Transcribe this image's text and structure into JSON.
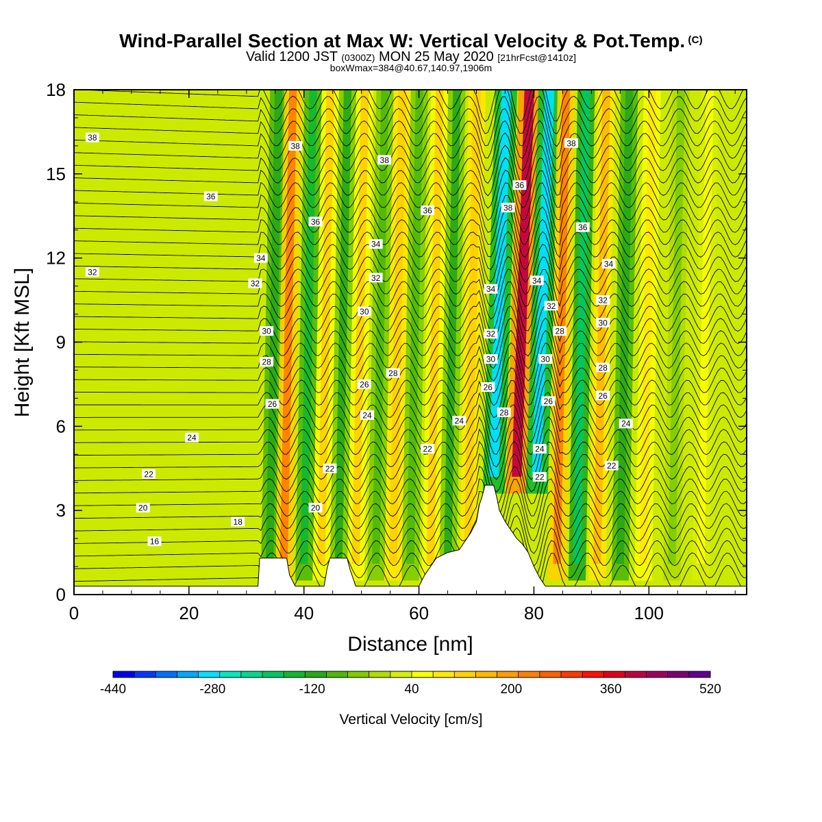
{
  "header": {
    "title": "Wind-Parallel Section at Max W: Vertical Velocity & Pot.Temp.",
    "title_mark": "(C)",
    "valid_prefix": "Valid 1200 JST",
    "valid_utc": "(0300Z)",
    "valid_date": "MON 25 May 2020",
    "forecast": "[21hrFcst@1410z]",
    "boxmax": "boxWmax=384@40.67,140.97,1906m"
  },
  "chart_data": {
    "type": "heatmap",
    "xlabel": "Distance [nm]",
    "ylabel": "Height [Kft MSL]",
    "xlim": [
      0,
      117
    ],
    "ylim": [
      0,
      18
    ],
    "xticks": [
      "0",
      "20",
      "40",
      "60",
      "80",
      "100"
    ],
    "yticks": [
      "0",
      "3",
      "6",
      "9",
      "12",
      "15",
      "18"
    ],
    "colorbar": {
      "title": "Vertical Velocity [cm/s]",
      "labels": [
        "-440",
        "-280",
        "-120",
        "40",
        "200",
        "360",
        "520"
      ],
      "range": [
        -440,
        520
      ],
      "colors": [
        "#0000f0",
        "#0038ff",
        "#0070ff",
        "#00a8ff",
        "#00e0ff",
        "#00e8c0",
        "#00d890",
        "#00c860",
        "#10b830",
        "#28a818",
        "#50b808",
        "#80cc00",
        "#b0dc00",
        "#d8ee00",
        "#f8ff00",
        "#ffe800",
        "#ffd000",
        "#ffb800",
        "#ff9c00",
        "#ff8000",
        "#ff6000",
        "#ff3800",
        "#ff1000",
        "#e00018",
        "#c00040",
        "#a00060",
        "#800070",
        "#600090"
      ]
    },
    "w_field": [
      {
        "x": 34,
        "w": -120
      },
      {
        "x": 36.5,
        "w": 240
      },
      {
        "x": 40,
        "w": -140
      },
      {
        "x": 43,
        "w": 120
      },
      {
        "x": 46,
        "w": -100
      },
      {
        "x": 49,
        "w": 120
      },
      {
        "x": 52.5,
        "w": -80
      },
      {
        "x": 55.5,
        "w": 140
      },
      {
        "x": 58.5,
        "w": -80
      },
      {
        "x": 62,
        "w": 120
      },
      {
        "x": 65,
        "w": -100
      },
      {
        "x": 68.5,
        "w": 140
      },
      {
        "x": 73,
        "w": -300
      },
      {
        "x": 77,
        "w": 384
      },
      {
        "x": 80.5,
        "w": -300
      },
      {
        "x": 84,
        "w": 240
      },
      {
        "x": 87.5,
        "w": -200
      },
      {
        "x": 91,
        "w": 160
      },
      {
        "x": 95,
        "w": -120
      },
      {
        "x": 99,
        "w": 80
      },
      {
        "x": 104,
        "w": -40
      },
      {
        "x": 109,
        "w": 40
      }
    ],
    "theta_levels": [
      16,
      18,
      20,
      22,
      24,
      26,
      28,
      30,
      32,
      34,
      36,
      38
    ],
    "contour_labels": [
      {
        "text": "38",
        "x": 3.2,
        "y": 16.3
      },
      {
        "text": "36",
        "x": 23.8,
        "y": 14.2
      },
      {
        "text": "32",
        "x": 3.2,
        "y": 11.5
      },
      {
        "text": "24",
        "x": 20.5,
        "y": 5.6
      },
      {
        "text": "22",
        "x": 13,
        "y": 4.3
      },
      {
        "text": "20",
        "x": 12,
        "y": 3.1
      },
      {
        "text": "18",
        "x": 28.5,
        "y": 2.6
      },
      {
        "text": "16",
        "x": 14,
        "y": 1.9
      },
      {
        "text": "38",
        "x": 38.5,
        "y": 16
      },
      {
        "text": "36",
        "x": 42,
        "y": 13.3
      },
      {
        "text": "34",
        "x": 32.5,
        "y": 12
      },
      {
        "text": "32",
        "x": 31.5,
        "y": 11.1
      },
      {
        "text": "30",
        "x": 33.5,
        "y": 9.4
      },
      {
        "text": "28",
        "x": 33.5,
        "y": 8.3
      },
      {
        "text": "26",
        "x": 34.5,
        "y": 6.8
      },
      {
        "text": "38",
        "x": 54,
        "y": 15.5
      },
      {
        "text": "34",
        "x": 52.5,
        "y": 12.5
      },
      {
        "text": "32",
        "x": 52.5,
        "y": 11.3
      },
      {
        "text": "30",
        "x": 50.5,
        "y": 10.1
      },
      {
        "text": "28",
        "x": 55.5,
        "y": 7.9
      },
      {
        "text": "26",
        "x": 50.5,
        "y": 7.5
      },
      {
        "text": "24",
        "x": 51,
        "y": 6.4
      },
      {
        "text": "22",
        "x": 44.5,
        "y": 4.5
      },
      {
        "text": "20",
        "x": 42,
        "y": 3.1
      },
      {
        "text": "36",
        "x": 61.5,
        "y": 13.7
      },
      {
        "text": "24",
        "x": 67,
        "y": 6.2
      },
      {
        "text": "22",
        "x": 61.5,
        "y": 5.2
      },
      {
        "text": "34",
        "x": 72.5,
        "y": 10.9
      },
      {
        "text": "32",
        "x": 72.5,
        "y": 9.3
      },
      {
        "text": "30",
        "x": 72.5,
        "y": 8.4
      },
      {
        "text": "26",
        "x": 72,
        "y": 7.4
      },
      {
        "text": "28",
        "x": 74.8,
        "y": 6.5
      },
      {
        "text": "38",
        "x": 75.5,
        "y": 13.8
      },
      {
        "text": "36",
        "x": 77.5,
        "y": 14.6
      },
      {
        "text": "38",
        "x": 86.5,
        "y": 16.1
      },
      {
        "text": "36",
        "x": 88.5,
        "y": 13.1
      },
      {
        "text": "34",
        "x": 80.5,
        "y": 11.2
      },
      {
        "text": "32",
        "x": 83,
        "y": 10.3
      },
      {
        "text": "28",
        "x": 84.5,
        "y": 9.4
      },
      {
        "text": "30",
        "x": 82,
        "y": 8.4
      },
      {
        "text": "26",
        "x": 82.5,
        "y": 6.9
      },
      {
        "text": "24",
        "x": 81,
        "y": 5.2
      },
      {
        "text": "22",
        "x": 81,
        "y": 4.2
      },
      {
        "text": "34",
        "x": 93,
        "y": 11.8
      },
      {
        "text": "32",
        "x": 92,
        "y": 10.5
      },
      {
        "text": "30",
        "x": 92,
        "y": 9.7
      },
      {
        "text": "28",
        "x": 92,
        "y": 8.1
      },
      {
        "text": "26",
        "x": 92,
        "y": 7.1
      },
      {
        "text": "24",
        "x": 96,
        "y": 6.1
      },
      {
        "text": "22",
        "x": 93.5,
        "y": 4.6
      }
    ],
    "terrain": [
      [
        0,
        0.3
      ],
      [
        32,
        0.3
      ],
      [
        32.3,
        1.3
      ],
      [
        37,
        1.3
      ],
      [
        37.5,
        0.7
      ],
      [
        38.5,
        0.3
      ],
      [
        43.5,
        0.3
      ],
      [
        44,
        0.9
      ],
      [
        44.5,
        1.3
      ],
      [
        47.5,
        1.3
      ],
      [
        48,
        0.9
      ],
      [
        49,
        0.3
      ],
      [
        60,
        0.3
      ],
      [
        61,
        0.7
      ],
      [
        62,
        1.0
      ],
      [
        63,
        1.3
      ],
      [
        65,
        1.5
      ],
      [
        67,
        1.6
      ],
      [
        68,
        1.9
      ],
      [
        69,
        2.2
      ],
      [
        70,
        2.6
      ],
      [
        70.5,
        3.2
      ],
      [
        71,
        3.5
      ],
      [
        71.5,
        3.9
      ],
      [
        73,
        3.9
      ],
      [
        73.5,
        3.5
      ],
      [
        74,
        3.0
      ],
      [
        75,
        2.6
      ],
      [
        76,
        2.3
      ],
      [
        77,
        2.0
      ],
      [
        78,
        1.8
      ],
      [
        79,
        1.5
      ],
      [
        80,
        1.0
      ],
      [
        81,
        0.6
      ],
      [
        82,
        0.3
      ],
      [
        117,
        0.3
      ]
    ]
  }
}
